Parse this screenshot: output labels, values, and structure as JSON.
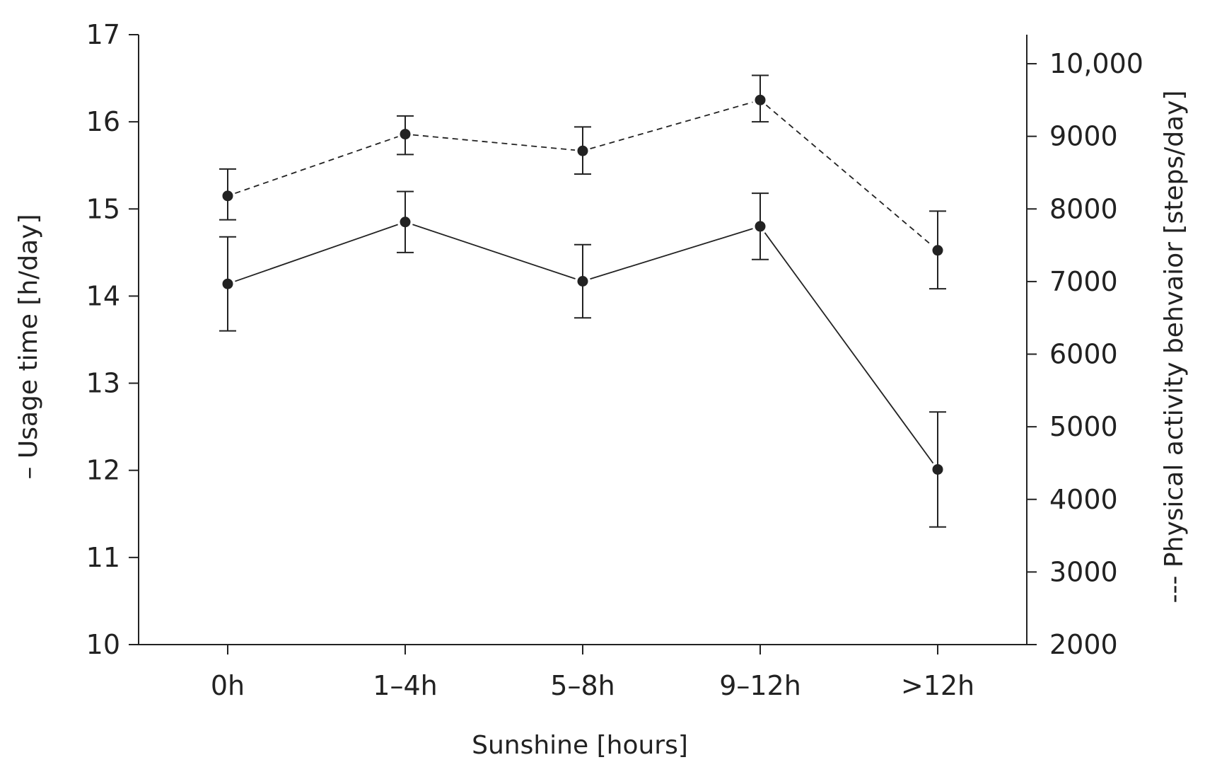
{
  "chart_data": {
    "type": "line",
    "categories": [
      "0h",
      "1–4h",
      "5–8h",
      "9–12h",
      ">12h"
    ],
    "xlabel": "Sunshine [hours]",
    "y_left": {
      "label": "– Usage time [h/day]",
      "ylim": [
        10,
        17
      ],
      "ticks": [
        "10",
        "11",
        "12",
        "13",
        "14",
        "15",
        "16",
        "17"
      ]
    },
    "y_right": {
      "label": "--- Physical activity behvaior [steps/day]",
      "ylim": [
        2000,
        10400
      ],
      "ticks": [
        "2000",
        "3000",
        "4000",
        "5000",
        "6000",
        "7000",
        "8000",
        "9000",
        "10,000"
      ]
    },
    "series": [
      {
        "name": "Usage time",
        "axis": "left",
        "style": "solid",
        "values": [
          14.14,
          14.85,
          14.17,
          14.8,
          12.01
        ],
        "err_low": [
          13.6,
          14.5,
          13.75,
          14.42,
          11.35
        ],
        "err_high": [
          14.68,
          15.2,
          14.59,
          15.18,
          12.67
        ]
      },
      {
        "name": "Physical activity behavior",
        "axis": "right",
        "style": "dashed",
        "values": [
          8180,
          9030,
          8800,
          9500,
          7430
        ],
        "err_low": [
          7850,
          8750,
          8480,
          9200,
          6900
        ],
        "err_high": [
          8550,
          9280,
          9130,
          9840,
          7970
        ]
      }
    ]
  }
}
